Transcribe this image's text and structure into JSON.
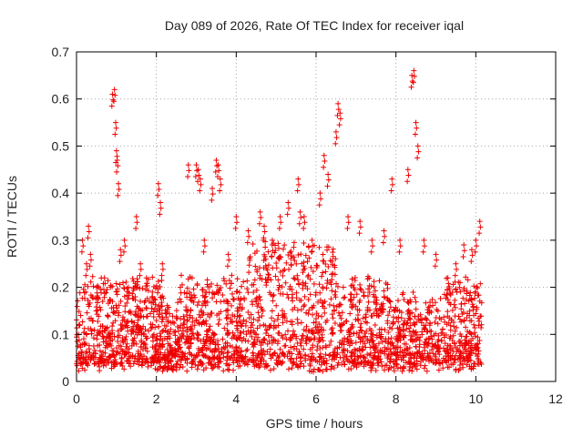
{
  "chart_data": {
    "type": "scatter",
    "title": "Day 089 of 2026, Rate Of TEC Index for receiver iqal",
    "xlabel": "GPS time / hours",
    "ylabel": "ROTI / TECUs",
    "xlim": [
      0,
      12
    ],
    "ylim": [
      0,
      0.7
    ],
    "x_ticks": [
      "0",
      "2",
      "4",
      "6",
      "8",
      "10",
      "12"
    ],
    "y_ticks": [
      "0",
      "0.1",
      "0.2",
      "0.3",
      "0.4",
      "0.5",
      "0.6",
      "0.7"
    ],
    "grid": true,
    "marker": "+",
    "color": "#ee0000",
    "series": [
      {
        "name": "ROTI",
        "description": "Dense cloud of ROTI samples from 0 to ~10.1 h; baseline 0.02–0.30 TECU with outlier peaks",
        "x": [
          0.05,
          0.15,
          0.25,
          0.3,
          0.35,
          0.5,
          0.7,
          0.9,
          0.95,
          0.98,
          1.0,
          1.02,
          1.05,
          1.1,
          1.2,
          1.3,
          1.5,
          1.6,
          1.75,
          1.9,
          2.05,
          2.1,
          2.15,
          2.6,
          2.8,
          3.0,
          3.05,
          3.1,
          3.2,
          3.4,
          3.5,
          3.55,
          3.6,
          3.8,
          4.0,
          4.3,
          4.6,
          4.7,
          4.9,
          5.1,
          5.3,
          5.55,
          5.6,
          5.7,
          5.9,
          6.1,
          6.2,
          6.3,
          6.5,
          6.55,
          6.6,
          6.8,
          7.1,
          7.4,
          7.7,
          7.9,
          8.1,
          8.3,
          8.4,
          8.45,
          8.5,
          8.55,
          8.7,
          9.0,
          9.3,
          9.5,
          9.7,
          9.9,
          10.0,
          10.1
        ],
        "y": [
          0.1,
          0.3,
          0.25,
          0.33,
          0.27,
          0.2,
          0.22,
          0.61,
          0.62,
          0.55,
          0.49,
          0.47,
          0.42,
          0.28,
          0.3,
          0.2,
          0.35,
          0.25,
          0.22,
          0.18,
          0.42,
          0.38,
          0.25,
          0.2,
          0.46,
          0.46,
          0.45,
          0.43,
          0.3,
          0.41,
          0.47,
          0.46,
          0.43,
          0.27,
          0.35,
          0.32,
          0.36,
          0.33,
          0.29,
          0.35,
          0.38,
          0.43,
          0.36,
          0.35,
          0.3,
          0.4,
          0.48,
          0.44,
          0.53,
          0.59,
          0.57,
          0.35,
          0.34,
          0.3,
          0.32,
          0.43,
          0.3,
          0.45,
          0.65,
          0.66,
          0.55,
          0.5,
          0.3,
          0.27,
          0.22,
          0.25,
          0.29,
          0.28,
          0.3,
          0.34
        ]
      }
    ],
    "baseline_cloud": {
      "x_range": [
        0,
        10.15
      ],
      "y_range": [
        0.02,
        0.3
      ]
    }
  }
}
